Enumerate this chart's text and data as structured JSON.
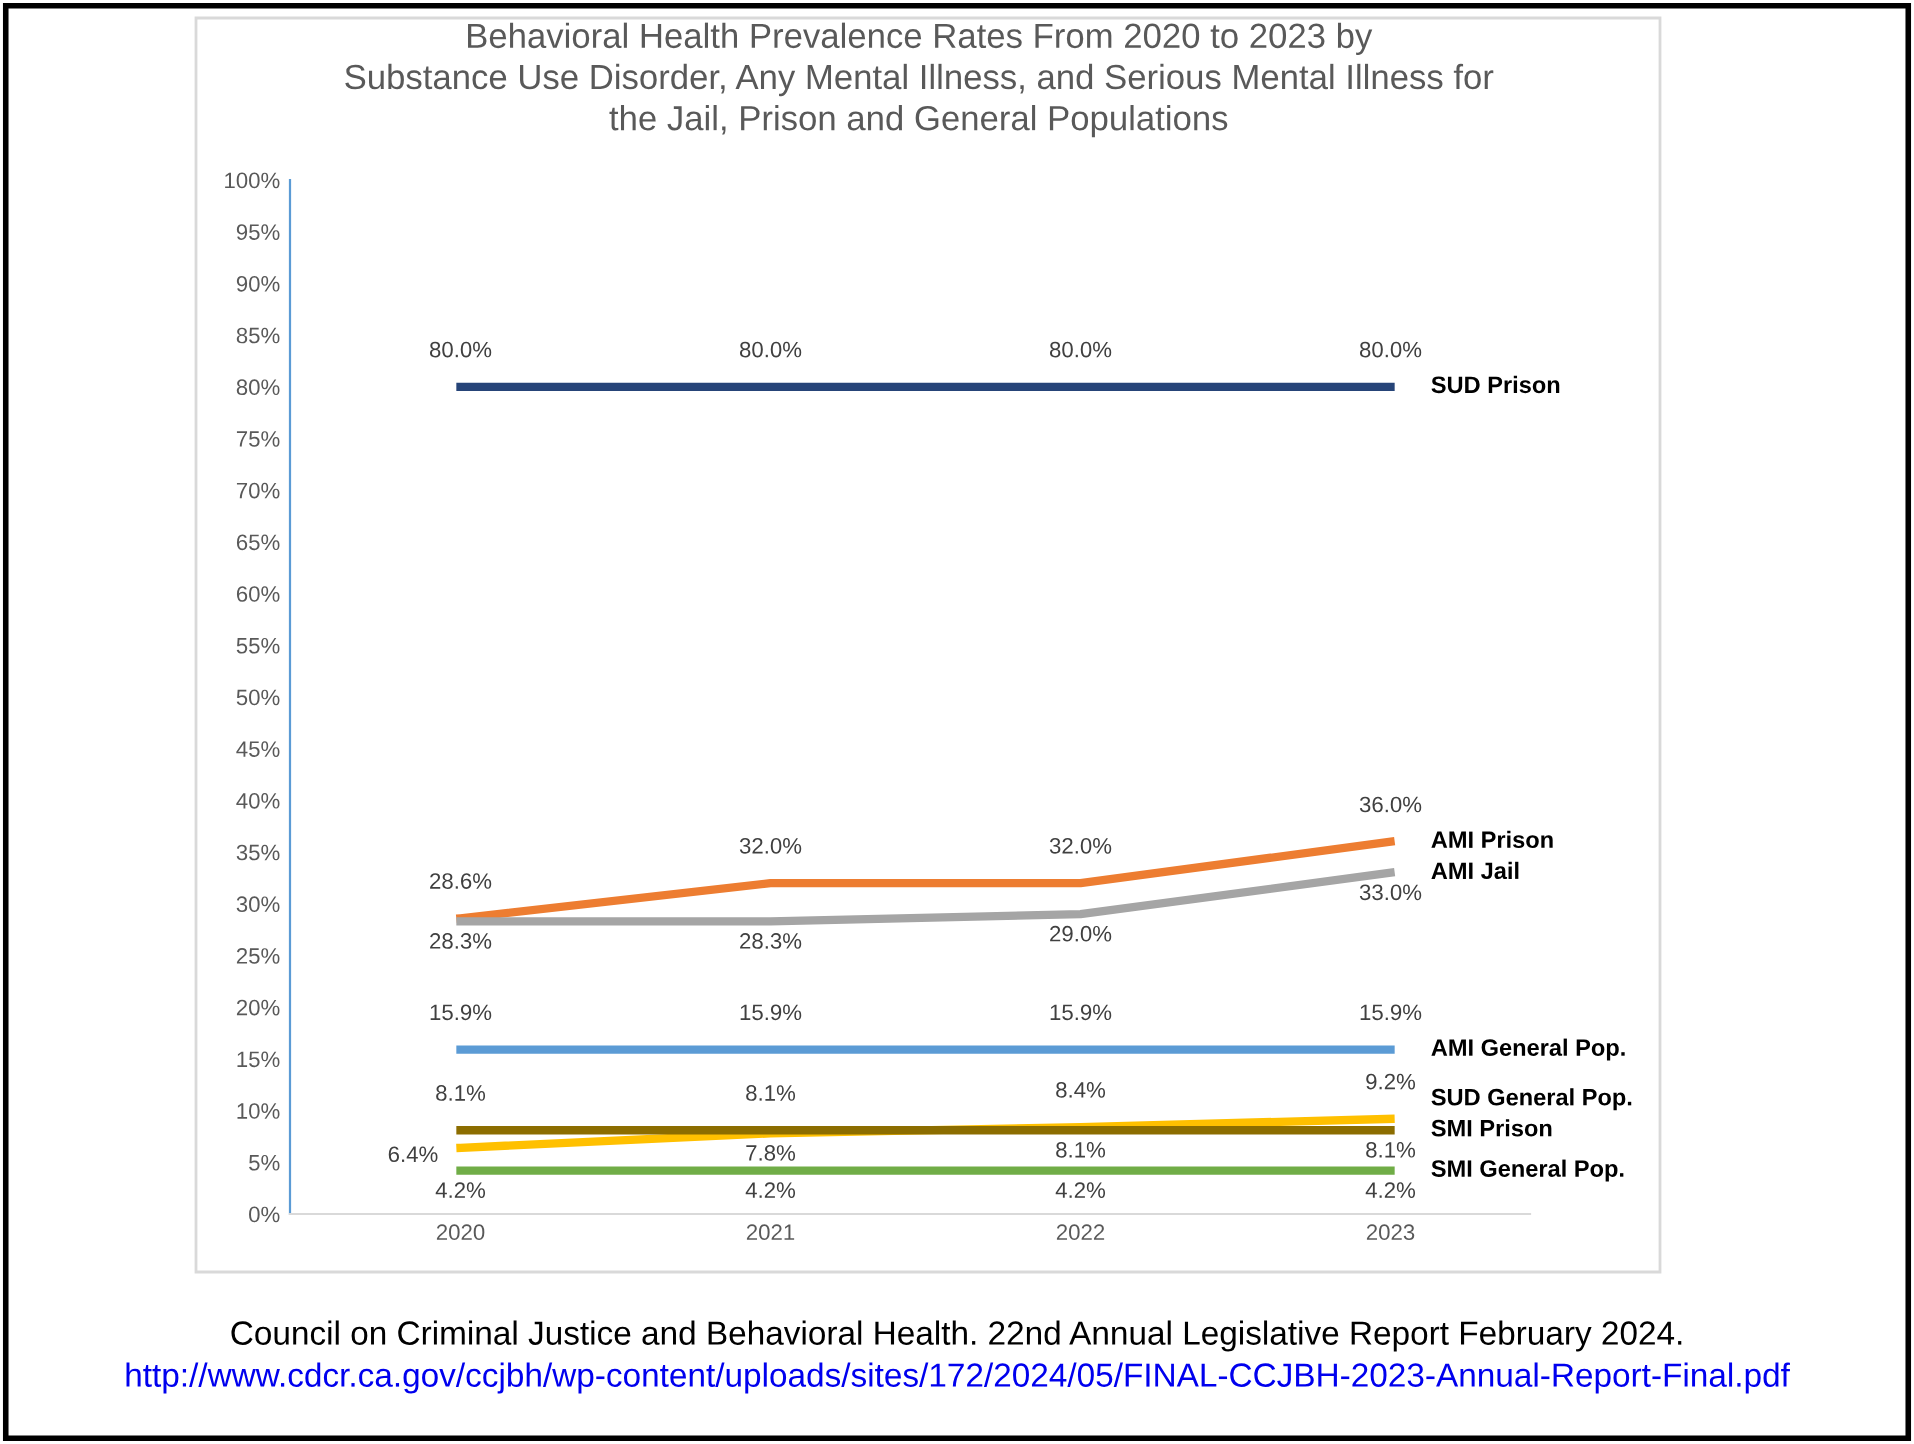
{
  "chart_data": {
    "type": "line",
    "title": "Behavioral Health Prevalence Rates From 2020 to 2023 by\nSubstance Use Disorder, Any Mental Illness, and Serious Mental Illness for\nthe Jail, Prison and General Populations",
    "categories": [
      "2020",
      "2021",
      "2022",
      "2023"
    ],
    "series": [
      {
        "name": "SUD Prison",
        "color": "#264478",
        "values": [
          80.0,
          80.0,
          80.0,
          80.0
        ],
        "value_labels": [
          "80.0%",
          "80.0%",
          "80.0%",
          "80.0%"
        ]
      },
      {
        "name": "AMI Prison",
        "color": "#ed7d31",
        "values": [
          28.6,
          32.0,
          32.0,
          36.0
        ],
        "value_labels": [
          "28.6%",
          "32.0%",
          "32.0%",
          "36.0%"
        ]
      },
      {
        "name": "AMI Jail",
        "color": "#a5a5a5",
        "values": [
          28.3,
          28.3,
          29.0,
          33.0
        ],
        "value_labels": [
          "28.3%",
          "28.3%",
          "29.0%",
          "33.0%"
        ]
      },
      {
        "name": "AMI General Pop.",
        "color": "#5b9bd5",
        "values": [
          15.9,
          15.9,
          15.9,
          15.9
        ],
        "value_labels": [
          "15.9%",
          "15.9%",
          "15.9%",
          "15.9%"
        ]
      },
      {
        "name": "SUD General Pop.",
        "color": "#ffc000",
        "values": [
          6.4,
          7.8,
          8.4,
          9.2
        ],
        "value_labels": [
          "6.4%",
          "7.8%",
          "8.4%",
          "9.2%"
        ]
      },
      {
        "name": "SMI Prison",
        "color": "#8c6d00",
        "values": [
          8.1,
          8.1,
          8.1,
          8.1
        ],
        "value_labels": [
          "8.1%",
          "8.1%",
          "8.1%",
          "8.1%"
        ]
      },
      {
        "name": "SMI General Pop.",
        "color": "#70ad47",
        "values": [
          4.2,
          4.2,
          4.2,
          4.2
        ],
        "value_labels": [
          "4.2%",
          "4.2%",
          "4.2%",
          "4.2%"
        ]
      }
    ],
    "ylim": [
      0,
      100
    ],
    "yticks": [
      {
        "value": 0,
        "label": "0%"
      },
      {
        "value": 5,
        "label": "5%"
      },
      {
        "value": 10,
        "label": "10%"
      },
      {
        "value": 15,
        "label": "15%"
      },
      {
        "value": 20,
        "label": "20%"
      },
      {
        "value": 25,
        "label": "25%"
      },
      {
        "value": 30,
        "label": "30%"
      },
      {
        "value": 35,
        "label": "35%"
      },
      {
        "value": 40,
        "label": "40%"
      },
      {
        "value": 45,
        "label": "45%"
      },
      {
        "value": 50,
        "label": "50%"
      },
      {
        "value": 55,
        "label": "55%"
      },
      {
        "value": 60,
        "label": "60%"
      },
      {
        "value": 65,
        "label": "65%"
      },
      {
        "value": 70,
        "label": "70%"
      },
      {
        "value": 75,
        "label": "75%"
      },
      {
        "value": 80,
        "label": "80%"
      },
      {
        "value": 85,
        "label": "85%"
      },
      {
        "value": 90,
        "label": "90%"
      },
      {
        "value": 95,
        "label": "95%"
      },
      {
        "value": 100,
        "label": "100%"
      }
    ],
    "grid": false,
    "legend": false,
    "marker": "none",
    "line_style": "solid",
    "annotations": [
      "Council on Criminal Justice and Behavioral Health. 22nd Annual Legislative Report February 2024.",
      "http://www.cdcr.ca.gov/ccjbh/wp-content/uploads/sites/172/2024/05/FINAL-CCJBH-2023-Annual-Report-Final.pdf"
    ]
  }
}
